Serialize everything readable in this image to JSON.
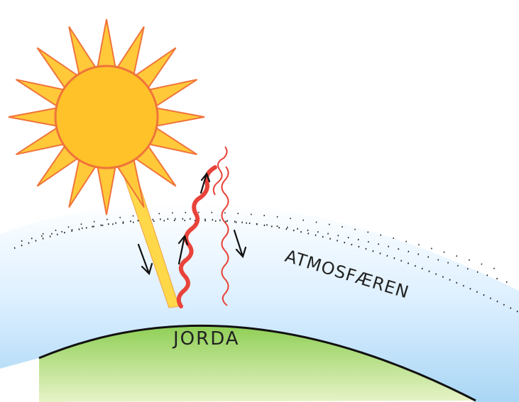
{
  "labels": {
    "atmosphere": "ATMOSFÆREN",
    "earth": "JORDA"
  }
}
